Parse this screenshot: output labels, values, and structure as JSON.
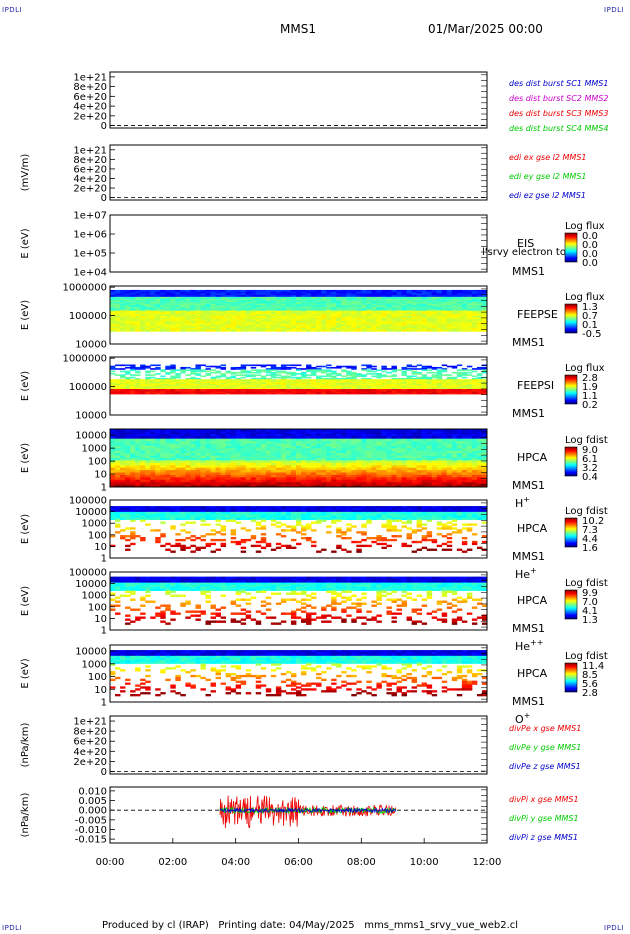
{
  "corner_label": "IPDLI",
  "header": {
    "spacecraft": "MMS1",
    "date": "01/Mar/2025 00:00"
  },
  "footer": {
    "produced_by": "Produced by cl (IRAP)",
    "printing_date": "Printing date: 04/May/2025",
    "script": "mms_mms1_srvy_vue_web2.cl"
  },
  "colors": {
    "blue": "#0000cc",
    "magenta": "#cc00cc",
    "red": "#ee0000",
    "green": "#00cc00"
  },
  "chart_data": {
    "type": "heatmap",
    "x_range_hours": [
      0,
      12
    ],
    "x_ticks": [
      "00:00",
      "02:00",
      "04:00",
      "06:00",
      "08:00",
      "10:00",
      "12:00"
    ],
    "panels": [
      {
        "id": "des-dist",
        "kind": "line",
        "ylabel": "",
        "yticks": [
          "1e+21",
          "8e+20",
          "6e+20",
          "4e+20",
          "2e+20",
          "0"
        ],
        "ytick_values": [
          1e+21,
          8e+20,
          6e+20,
          4e+20,
          2e+20,
          0
        ],
        "ylim": [
          -5e+19,
          1.1e+21
        ],
        "zero_line": true,
        "legend": [
          {
            "text": "des dist burst SC1 MMS1",
            "color": "blue"
          },
          {
            "text": "des dist burst SC2 MMS2",
            "color": "magenta"
          },
          {
            "text": "des dist burst SC3 MMS3",
            "color": "red"
          },
          {
            "text": "des dist burst SC4 MMS4",
            "color": "green"
          }
        ]
      },
      {
        "id": "edi-e",
        "kind": "line",
        "ylabel": "(mV/m)",
        "yticks": [
          "1e+21",
          "8e+20",
          "6e+20",
          "4e+20",
          "2e+20",
          "0"
        ],
        "ytick_values": [
          1e+21,
          8e+20,
          6e+20,
          4e+20,
          2e+20,
          0
        ],
        "ylim": [
          -5e+19,
          1.1e+21
        ],
        "zero_line": true,
        "legend": [
          {
            "text": "edi ex gse l2 MMS1",
            "color": "red"
          },
          {
            "text": "edi ey gse l2 MMS1",
            "color": "green"
          },
          {
            "text": "edi ez gse l2 MMS1",
            "color": "blue"
          }
        ]
      },
      {
        "id": "eis",
        "kind": "spectrogram",
        "log": true,
        "ylabel": "E (eV)",
        "yticks": [
          "1e+07",
          "1e+06",
          "1e+05",
          "1e+04"
        ],
        "ytick_values": [
          10000000.0,
          1000000.0,
          100000.0,
          10000.0
        ],
        "ylim": [
          10000.0,
          10000000.0
        ],
        "labels": [
          "EIS",
          "MMS1"
        ],
        "overlay_text": "l'srvy electron to",
        "cbar_title": "Log flux",
        "cbar_ticks": [
          "0.0",
          "0.0",
          "0.0",
          "0.0"
        ],
        "band": null
      },
      {
        "id": "feeps-e",
        "kind": "spectrogram",
        "log": true,
        "ylabel": "E (eV)",
        "yticks": [
          "1000000",
          "100000",
          "10000"
        ],
        "ytick_values": [
          1000000.0,
          100000.0,
          10000.0
        ],
        "ylim": [
          10000.0,
          1100000.0
        ],
        "labels": [
          "FEEPSE",
          "MMS1"
        ],
        "cbar_title": "Log flux",
        "cbar_ticks": [
          "1.3",
          "0.7",
          "0.1",
          "-0.5"
        ],
        "band": [
          28000,
          800000
        ]
      },
      {
        "id": "feeps-i",
        "kind": "spectrogram",
        "log": true,
        "ylabel": "E (eV)",
        "yticks": [
          "1000000",
          "100000",
          "10000"
        ],
        "ytick_values": [
          1000000.0,
          100000.0,
          10000.0
        ],
        "ylim": [
          10000.0,
          1100000.0
        ],
        "labels": [
          "FEEPSI",
          "MMS1"
        ],
        "cbar_title": "Log flux",
        "cbar_ticks": [
          "2.8",
          "1.9",
          "1.1",
          "0.2"
        ],
        "band": [
          55000,
          600000
        ]
      },
      {
        "id": "hpca-h",
        "kind": "spectrogram",
        "log": true,
        "ylabel": "E (eV)",
        "yticks": [
          "10000",
          "1000",
          "100",
          "10",
          "1"
        ],
        "ytick_values": [
          10000.0,
          1000.0,
          100.0,
          10,
          1
        ],
        "ylim": [
          1,
          30000.0
        ],
        "labels": [
          "HPCA",
          "MMS1"
        ],
        "species": "H",
        "charge": "+",
        "cbar_title": "Log fdist",
        "cbar_ticks": [
          "9.0",
          "6.1",
          "3.2",
          "0.4"
        ],
        "band": [
          1,
          30000
        ]
      },
      {
        "id": "hpca-he1",
        "kind": "spectrogram",
        "log": true,
        "ylabel": "E (eV)",
        "yticks": [
          "100000",
          "10000",
          "1000",
          "100",
          "10",
          "1"
        ],
        "ytick_values": [
          100000.0,
          10000.0,
          1000.0,
          100.0,
          10,
          1
        ],
        "ylim": [
          1,
          100000.0
        ],
        "labels": [
          "HPCA",
          "MMS1"
        ],
        "species": "He",
        "charge": "+",
        "cbar_title": "Log fdist",
        "cbar_ticks": [
          "10.2",
          "7.3",
          "4.4",
          "1.6"
        ],
        "band": [
          3,
          30000
        ]
      },
      {
        "id": "hpca-he2",
        "kind": "spectrogram",
        "log": true,
        "ylabel": "E (eV)",
        "yticks": [
          "100000",
          "10000",
          "1000",
          "100",
          "10",
          "1"
        ],
        "ytick_values": [
          100000.0,
          10000.0,
          1000.0,
          100.0,
          10,
          1
        ],
        "ylim": [
          1,
          100000.0
        ],
        "labels": [
          "HPCA",
          "MMS1"
        ],
        "species": "He",
        "charge": "++",
        "cbar_title": "Log fdist",
        "cbar_ticks": [
          "9.9",
          "7.0",
          "4.1",
          "1.3"
        ],
        "band": [
          3,
          40000
        ]
      },
      {
        "id": "hpca-o",
        "kind": "spectrogram",
        "log": true,
        "ylabel": "E (eV)",
        "yticks": [
          "10000",
          "1000",
          "100",
          "10",
          "1"
        ],
        "ytick_values": [
          10000.0,
          1000.0,
          100.0,
          10,
          1
        ],
        "ylim": [
          1,
          30000.0
        ],
        "labels": [
          "HPCA",
          "MMS1"
        ],
        "species": "O",
        "charge": "+",
        "cbar_title": "Log fdist",
        "cbar_ticks": [
          "11.4",
          "8.5",
          "5.6",
          "2.8"
        ],
        "band": [
          3,
          12000
        ]
      },
      {
        "id": "divpe",
        "kind": "line",
        "ylabel": "(nPa/km)",
        "yticks": [
          "1e+21",
          "8e+20",
          "6e+20",
          "4e+20",
          "2e+20",
          "0"
        ],
        "ytick_values": [
          1e+21,
          8e+20,
          6e+20,
          4e+20,
          2e+20,
          0
        ],
        "ylim": [
          -5e+19,
          1.1e+21
        ],
        "zero_line": true,
        "legend": [
          {
            "text": "divPe x gse MMS1",
            "color": "red"
          },
          {
            "text": "divPe y gse MMS1",
            "color": "green"
          },
          {
            "text": "divPe z gse MMS1",
            "color": "blue"
          }
        ]
      },
      {
        "id": "divpi",
        "kind": "line",
        "ylabel": "(nPa/km)",
        "yticks": [
          "0.010",
          "0.005",
          "0.000",
          "-0.005",
          "-0.010",
          "-0.015"
        ],
        "ytick_values": [
          0.01,
          0.005,
          0,
          -0.005,
          -0.01,
          -0.015
        ],
        "ylim": [
          -0.017,
          0.012
        ],
        "zero_line": true,
        "data_range_hours": [
          3.5,
          9.1
        ],
        "legend": [
          {
            "text": "divPi x gse MMS1",
            "color": "red"
          },
          {
            "text": "divPi y gse MMS1",
            "color": "green"
          },
          {
            "text": "divPi z gse MMS1",
            "color": "blue"
          }
        ]
      }
    ]
  }
}
